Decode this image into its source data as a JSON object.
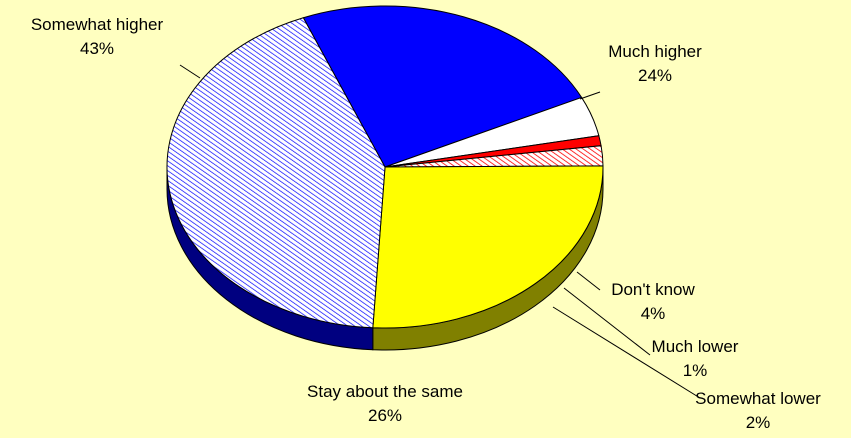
{
  "chart_data": {
    "type": "pie",
    "title": "",
    "slices": [
      {
        "label": "Much higher",
        "value": 24,
        "pct_label": "24%",
        "color": "#0000ff",
        "side_color": "#000080",
        "pattern": "solid"
      },
      {
        "label": "Don't know",
        "value": 4,
        "pct_label": "4%",
        "color": "#ffffff",
        "side_color": "#8c8c8c",
        "pattern": "solid"
      },
      {
        "label": "Much lower",
        "value": 1,
        "pct_label": "1%",
        "color": "#ff0000",
        "side_color": "#800000",
        "pattern": "solid"
      },
      {
        "label": "Somewhat lower",
        "value": 2,
        "pct_label": "2%",
        "color": "#ff0000",
        "side_color": "#800000",
        "pattern": "hatch-red"
      },
      {
        "label": "Stay about the same",
        "value": 26,
        "pct_label": "26%",
        "color": "#ffff00",
        "side_color": "#808000",
        "pattern": "solid"
      },
      {
        "label": "Somewhat higher",
        "value": 43,
        "pct_label": "43%",
        "color": "#0000ff",
        "side_color": "#000080",
        "pattern": "hatch-blue"
      }
    ],
    "three_d": true,
    "background": "#ffffc0"
  }
}
